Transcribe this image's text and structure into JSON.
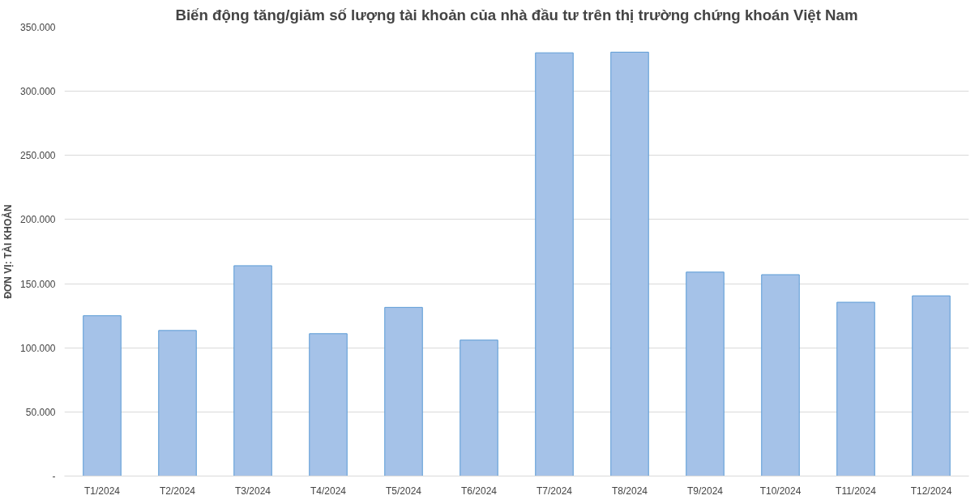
{
  "chart_data": {
    "type": "bar",
    "title": "Biến động tăng/giảm số lượng tài khoản của nhà đầu tư trên thị trường chứng khoán Việt Nam",
    "ylabel": "ĐƠN VỊ: TÀI KHOẢN",
    "categories": [
      "T1/2024",
      "T2/2024",
      "T3/2024",
      "T4/2024",
      "T5/2024",
      "T6/2024",
      "T7/2024",
      "T8/2024",
      "T9/2024",
      "T10/2024",
      "T11/2024",
      "T12/2024"
    ],
    "values": [
      125000,
      113500,
      164000,
      111000,
      131500,
      106000,
      330000,
      330500,
      159000,
      157000,
      135500,
      140500
    ],
    "color": "#a5c2e8",
    "ylim": [
      0,
      350000
    ],
    "yticks": [
      {
        "value": 0,
        "label": "-"
      },
      {
        "value": 50000,
        "label": "50.000"
      },
      {
        "value": 100000,
        "label": "100.000"
      },
      {
        "value": 150000,
        "label": "150.000"
      },
      {
        "value": 200000,
        "label": "200.000"
      },
      {
        "value": 250000,
        "label": "250.000"
      },
      {
        "value": 300000,
        "label": "300.000"
      },
      {
        "value": 350000,
        "label": "350.000"
      }
    ],
    "grid": "y"
  }
}
